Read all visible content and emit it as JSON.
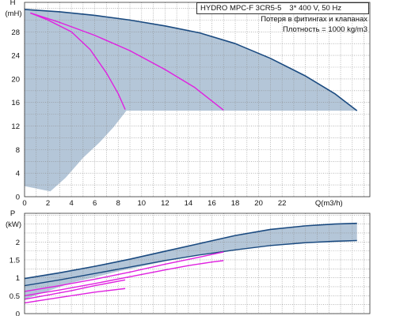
{
  "header": {
    "title": "HYDRO MPC-F 3CR5-5",
    "supply": "3* 400 V, 50 Hz",
    "note1": "Потеря в фитингах и клапанах",
    "note2": "Плотность = 1000 kg/m3"
  },
  "colors": {
    "grid": "#8a8a8a",
    "envelope": "#b4c6d8",
    "envelope_curve": "#1a4a80",
    "operating_curve": "#e020e0"
  },
  "chart_data": [
    {
      "type": "line",
      "title": "",
      "ylabel": "H",
      "yunit": "(mH)",
      "xlabel": "Q(m3/h)",
      "xlim": [
        0,
        29.5
      ],
      "ylim": [
        0,
        33
      ],
      "yticks": [
        0,
        4,
        8,
        12,
        16,
        20,
        24,
        28
      ],
      "xticks": [
        0,
        2,
        4,
        6,
        8,
        10,
        12,
        14,
        16,
        18,
        20,
        22
      ],
      "shaded_region": {
        "upper": [
          [
            0,
            31.8
          ],
          [
            3,
            31.4
          ],
          [
            6,
            30.8
          ],
          [
            9,
            30
          ],
          [
            12,
            29
          ],
          [
            15,
            27.8
          ],
          [
            18,
            26
          ],
          [
            21,
            23.5
          ],
          [
            24,
            20.5
          ],
          [
            26.5,
            17.5
          ],
          [
            28.4,
            14.6
          ]
        ],
        "lower": [
          [
            28.4,
            14.6
          ],
          [
            8.7,
            14.6
          ],
          [
            7.6,
            11.8
          ],
          [
            6.4,
            9.2
          ],
          [
            5,
            6.6
          ],
          [
            3.5,
            3.2
          ],
          [
            2.2,
            0.9
          ],
          [
            0,
            1.8
          ]
        ]
      },
      "series": [
        {
          "values": [
            [
              0,
              31.8
            ],
            [
              3,
              31.4
            ],
            [
              6,
              30.8
            ],
            [
              9,
              30
            ],
            [
              12,
              29
            ],
            [
              15,
              27.8
            ],
            [
              18,
              26
            ],
            [
              21,
              23.5
            ],
            [
              24,
              20.5
            ],
            [
              26.5,
              17.5
            ],
            [
              28.4,
              14.6
            ]
          ]
        },
        {
          "values": [
            [
              0.5,
              31.2
            ],
            [
              3,
              29.6
            ],
            [
              6,
              27.4
            ],
            [
              9,
              24.8
            ],
            [
              12,
              21.6
            ],
            [
              14.5,
              18.6
            ],
            [
              17,
              14.7
            ]
          ]
        },
        {
          "values": [
            [
              0.5,
              31.2
            ],
            [
              2,
              30
            ],
            [
              4,
              28
            ],
            [
              5.6,
              25
            ],
            [
              7,
              21
            ],
            [
              8,
              17.5
            ],
            [
              8.6,
              14.8
            ]
          ]
        }
      ]
    },
    {
      "type": "line",
      "title": "",
      "ylabel": "P",
      "yunit": "(kW)",
      "xlim": [
        0,
        29.5
      ],
      "ylim": [
        0,
        2.8
      ],
      "yticks": [
        0,
        0.5,
        1,
        1.5,
        2
      ],
      "ytick_labels": [
        "0",
        "0.5",
        "1",
        "1.5",
        "2"
      ],
      "shaded_region": {
        "upper": [
          [
            0,
            0.98
          ],
          [
            3,
            1.14
          ],
          [
            6,
            1.32
          ],
          [
            9,
            1.52
          ],
          [
            12,
            1.74
          ],
          [
            15,
            1.96
          ],
          [
            18,
            2.18
          ],
          [
            21,
            2.35
          ],
          [
            24,
            2.45
          ],
          [
            26.5,
            2.5
          ],
          [
            28.4,
            2.52
          ]
        ],
        "lower": [
          [
            28.4,
            2.52
          ],
          [
            28.4,
            2.02
          ],
          [
            24,
            1.96
          ],
          [
            20,
            1.86
          ],
          [
            16,
            1.7
          ],
          [
            12,
            1.46
          ],
          [
            8,
            1.18
          ],
          [
            4,
            0.86
          ],
          [
            0,
            0.4
          ]
        ]
      },
      "series": [
        {
          "values": [
            [
              0,
              0.98
            ],
            [
              3,
              1.14
            ],
            [
              6,
              1.32
            ],
            [
              9,
              1.52
            ],
            [
              12,
              1.74
            ],
            [
              15,
              1.96
            ],
            [
              18,
              2.18
            ],
            [
              21,
              2.35
            ],
            [
              24,
              2.45
            ],
            [
              26.5,
              2.5
            ],
            [
              28.4,
              2.52
            ]
          ]
        },
        {
          "values": [
            [
              0,
              0.78
            ],
            [
              3,
              0.94
            ],
            [
              6,
              1.12
            ],
            [
              9,
              1.3
            ],
            [
              12,
              1.48
            ],
            [
              15,
              1.64
            ],
            [
              18,
              1.78
            ],
            [
              21,
              1.9
            ],
            [
              24,
              1.98
            ],
            [
              26.5,
              2.02
            ],
            [
              28.4,
              2.04
            ]
          ]
        },
        {
          "values": [
            [
              0,
              0.62
            ],
            [
              3,
              0.78
            ],
            [
              6,
              0.96
            ],
            [
              9,
              1.16
            ],
            [
              12,
              1.38
            ],
            [
              15,
              1.58
            ],
            [
              17,
              1.72
            ]
          ]
        },
        {
          "values": [
            [
              0,
              0.5
            ],
            [
              3,
              0.66
            ],
            [
              6,
              0.84
            ],
            [
              9,
              1.03
            ],
            [
              12,
              1.22
            ],
            [
              14,
              1.34
            ],
            [
              16,
              1.44
            ],
            [
              17,
              1.48
            ]
          ]
        },
        {
          "values": [
            [
              0,
              0.4
            ],
            [
              2,
              0.52
            ],
            [
              4,
              0.64
            ],
            [
              6,
              0.78
            ],
            [
              8.6,
              0.94
            ]
          ]
        },
        {
          "values": [
            [
              0,
              0.3
            ],
            [
              2,
              0.4
            ],
            [
              4,
              0.5
            ],
            [
              6,
              0.6
            ],
            [
              8.6,
              0.7
            ]
          ]
        }
      ]
    }
  ]
}
